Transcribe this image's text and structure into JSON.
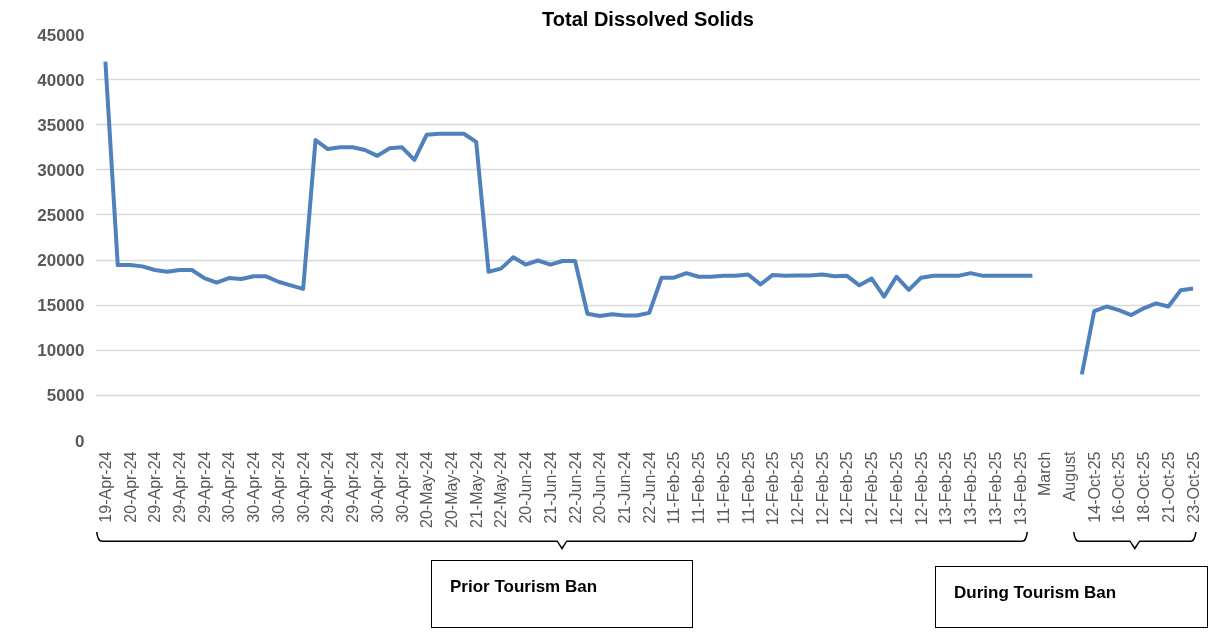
{
  "chart_data": {
    "type": "line",
    "title": "Total Dissolved Solids",
    "categories": [
      "19-Apr-24",
      null,
      "20-Apr-24",
      null,
      "29-Apr-24",
      null,
      "29-Apr-24",
      null,
      "29-Apr-24",
      null,
      "30-Apr-24",
      null,
      "30-Apr-24",
      null,
      "30-Apr-24",
      null,
      "30-Apr-24",
      null,
      "29-Apr-24",
      null,
      "29-Apr-24",
      null,
      "30-Apr-24",
      null,
      "30-Apr-24",
      null,
      "20-May-24",
      null,
      "20-May-24",
      null,
      "21-May-24",
      null,
      "22-May-24",
      null,
      "20-Jun-24",
      null,
      "21-Jun-24",
      null,
      "22-Jun-24",
      null,
      "20-Jun-24",
      null,
      "21-Jun-24",
      null,
      "22-Jun-24",
      null,
      "11-Feb-25",
      null,
      "11-Feb-25",
      null,
      "11-Feb-25",
      null,
      "11-Feb-25",
      null,
      "12-Feb-25",
      null,
      "12-Feb-25",
      null,
      "12-Feb-25",
      null,
      "12-Feb-25",
      null,
      "12-Feb-25",
      null,
      "12-Feb-25",
      null,
      "12-Feb-25",
      null,
      "13-Feb-25",
      null,
      "13-Feb-25",
      null,
      "13-Feb-25",
      null,
      "13-Feb-25",
      null,
      "March",
      null,
      "August",
      null,
      "14-Oct-25",
      null,
      "16-Oct-25",
      null,
      "18-Oct-25",
      null,
      "21-Oct-25",
      null,
      "23-Oct-25"
    ],
    "series": [
      {
        "color": "#4f81bd",
        "values": [
          42000,
          19450,
          19450,
          19300,
          18900,
          18700,
          18900,
          18900,
          18000,
          17500,
          18000,
          17900,
          18200,
          18200,
          17600,
          17200,
          16800,
          33300,
          32300,
          32500,
          32500,
          32200,
          31550,
          32400,
          32500,
          31100,
          33900,
          34000,
          34000,
          34000,
          33100,
          18700,
          19050,
          20300,
          19500,
          19950,
          19500,
          19900,
          19900,
          14050,
          13800,
          14000,
          13850,
          13850,
          14150,
          18050,
          18050,
          18550,
          18150,
          18150,
          18250,
          18250,
          18400,
          17300,
          18350,
          18250,
          18300,
          18300,
          18400,
          18200,
          18250,
          17200,
          17950,
          15950,
          18150,
          16700,
          18050,
          18250,
          18250,
          18250,
          18550,
          18250,
          18250,
          18250,
          18250,
          18250,
          null,
          null,
          null,
          7330,
          14350,
          14850,
          14450,
          13900,
          14650,
          15200,
          14850,
          16650,
          16850
        ]
      }
    ],
    "ylim": [
      0,
      45000
    ],
    "yticks": [
      0,
      5000,
      10000,
      15000,
      20000,
      25000,
      30000,
      35000,
      40000,
      45000
    ],
    "grid": "y",
    "marker": "none",
    "line_style": "solid",
    "annotations": [
      "Prior Tourism Ban",
      "During Tourism Ban"
    ]
  }
}
